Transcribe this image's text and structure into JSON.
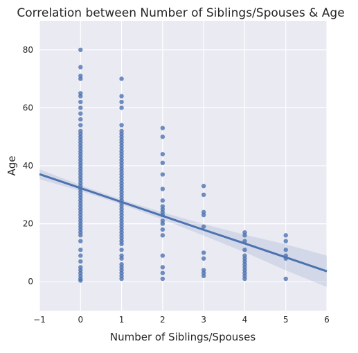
{
  "chart_data": {
    "type": "scatter",
    "title": "Correlation between Number of Siblings/Spouses & Age",
    "x_label": "Number of Siblings/Spouses",
    "y_label": "Age",
    "color": "#4c72b0",
    "background": "#eaeaf2",
    "grid": true,
    "xlim": [
      -1,
      6
    ],
    "ylim": [
      -10,
      90
    ],
    "xticks": [
      {
        "value": -1,
        "label": "−1"
      },
      0,
      1,
      2,
      3,
      4,
      5,
      6
    ],
    "yticks": [
      0,
      20,
      40,
      60,
      80
    ],
    "x": [
      0,
      0,
      0,
      0,
      0,
      0,
      0,
      0,
      0,
      0,
      0,
      0,
      0,
      0,
      0,
      0,
      0,
      0,
      0,
      0,
      0,
      0,
      0,
      0,
      0,
      0,
      0,
      0,
      0,
      0,
      0,
      0,
      0,
      0,
      0,
      0,
      0,
      0,
      0,
      0,
      0,
      0,
      0,
      0,
      0,
      0,
      0,
      0,
      0,
      0,
      0,
      0,
      0,
      0,
      0,
      0,
      0,
      0,
      1,
      1,
      1,
      1,
      1,
      1,
      1,
      1,
      1,
      1,
      1,
      1,
      1,
      1,
      1,
      1,
      1,
      1,
      1,
      1,
      1,
      1,
      1,
      1,
      1,
      1,
      1,
      1,
      1,
      1,
      1,
      1,
      1,
      1,
      1,
      1,
      1,
      1,
      1,
      1,
      1,
      1,
      1,
      1,
      1,
      1,
      1,
      1,
      1,
      1,
      1,
      1,
      1,
      1,
      2,
      2,
      2,
      2,
      2,
      2,
      2,
      2,
      2,
      2,
      2,
      2,
      2,
      2,
      2,
      2,
      2,
      2,
      2,
      3,
      3,
      3,
      3,
      3,
      3,
      3,
      3,
      3,
      3,
      4,
      4,
      4,
      4,
      4,
      4,
      4,
      4,
      4,
      4,
      4,
      4,
      4,
      5,
      5,
      5,
      5,
      5,
      5
    ],
    "values": [
      0.4,
      1,
      2,
      3,
      4,
      5,
      7,
      9,
      11,
      14,
      16,
      17,
      18,
      19,
      20,
      21,
      22,
      23,
      24,
      25,
      26,
      27,
      28,
      29,
      30,
      31,
      32,
      33,
      34,
      35,
      36,
      37,
      38,
      39,
      40,
      41,
      42,
      43,
      44,
      45,
      46,
      47,
      48,
      49,
      50,
      51,
      52,
      54,
      56,
      58,
      60,
      62,
      64,
      65,
      70,
      71,
      74,
      80,
      1,
      2,
      3,
      4,
      5,
      6,
      8,
      9,
      11,
      13,
      14,
      15,
      16,
      17,
      18,
      19,
      20,
      21,
      22,
      23,
      24,
      25,
      26,
      27,
      28,
      29,
      30,
      31,
      32,
      33,
      34,
      35,
      36,
      37,
      38,
      39,
      40,
      41,
      42,
      43,
      44,
      45,
      46,
      47,
      48,
      49,
      50,
      51,
      52,
      54,
      60,
      62,
      64,
      70,
      1,
      3,
      5,
      9,
      16,
      18,
      20,
      21,
      23,
      24,
      25,
      26,
      28,
      32,
      37,
      41,
      44,
      50,
      53,
      2,
      3,
      4,
      8,
      10,
      19,
      23,
      24,
      30,
      33,
      1,
      2,
      3,
      4,
      5,
      6,
      7,
      8,
      9,
      11,
      14,
      16,
      17,
      1,
      8,
      9,
      11,
      14,
      16
    ],
    "regression": {
      "x": [
        -1,
        0,
        1,
        2,
        3,
        4,
        5,
        6
      ],
      "values": [
        37.1,
        32.3,
        27.5,
        22.7,
        17.9,
        13.2,
        8.4,
        3.6
      ],
      "ci_upper": [
        38.8,
        33.3,
        28.3,
        23.9,
        19.9,
        16.2,
        12.9,
        9.0
      ],
      "ci_lower": [
        35.4,
        31.3,
        26.7,
        21.5,
        15.9,
        10.2,
        3.9,
        -1.8
      ]
    }
  }
}
